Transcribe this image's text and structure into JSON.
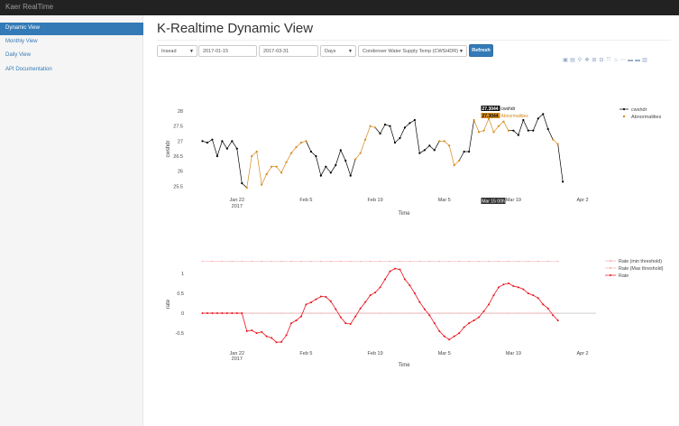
{
  "app": {
    "brand": "Kaer RealTime"
  },
  "sidebar": {
    "items": [
      {
        "label": "Dynamic View",
        "active": true
      },
      {
        "label": "Monthly View",
        "active": false
      },
      {
        "label": "Daily View",
        "active": false
      },
      {
        "label": "API Documentation",
        "active": false
      }
    ]
  },
  "main": {
    "title": "K-Realtime Dynamic View",
    "controls": {
      "site": "Insead",
      "start_date": "2017-01-15",
      "end_date": "2017-03-31",
      "interval": "Days",
      "metric": "Condenser Water Supply Temp (CWSHDR)",
      "refresh_label": "Refresh"
    },
    "modebar_icons": [
      "camera-icon",
      "save-icon",
      "zoom-icon",
      "pan-icon",
      "zoom-in-icon",
      "zoom-out-icon",
      "autoscale-icon",
      "home-icon",
      "spike-lines-icon",
      "hover-closest-icon",
      "hover-compare-icon",
      "plotly-logo-icon"
    ]
  },
  "colors": {
    "accent": "#337ab7",
    "normal": "#000000",
    "abnormal": "#d4891b",
    "rate": "#e8111b",
    "threshold": "#f7a8ad"
  },
  "chart_data": [
    {
      "type": "line",
      "title": "",
      "xlabel": "Time",
      "ylabel": "cwshdr",
      "ylim": [
        25.3,
        28.3
      ],
      "yticks": [
        25.5,
        26,
        26.5,
        27,
        27.5,
        28
      ],
      "xticks": [
        {
          "date": "2017-01-22",
          "label": "Jan 22",
          "sublabel": "2017"
        },
        {
          "date": "2017-02-05",
          "label": "Feb 5"
        },
        {
          "date": "2017-02-19",
          "label": "Feb 19"
        },
        {
          "date": "2017-03-05",
          "label": "Mar 5"
        },
        {
          "date": "2017-03-19",
          "label": "Mar 19"
        },
        {
          "date": "2017-04-02",
          "label": "Apr 2"
        }
      ],
      "x_range": [
        "2017-01-14",
        "2017-04-04"
      ],
      "legend": {
        "placement": "top-right",
        "entries": [
          "cwshdr",
          "Abnormalities"
        ]
      },
      "hover": {
        "date": "Mar 15 00h",
        "labels": [
          {
            "value": "27.3044",
            "series": "cwshdr"
          },
          {
            "value": "27.3044",
            "series": "Abnormalities"
          }
        ]
      },
      "series": [
        {
          "name": "cwshdr",
          "x": [
            "2017-01-15",
            "2017-01-16",
            "2017-01-17",
            "2017-01-18",
            "2017-01-19",
            "2017-01-20",
            "2017-01-21",
            "2017-01-22",
            "2017-01-23",
            "2017-01-24",
            "2017-01-25",
            "2017-01-26",
            "2017-01-27",
            "2017-01-28",
            "2017-01-29",
            "2017-01-30",
            "2017-01-31",
            "2017-02-01",
            "2017-02-02",
            "2017-02-03",
            "2017-02-04",
            "2017-02-05",
            "2017-02-06",
            "2017-02-07",
            "2017-02-08",
            "2017-02-09",
            "2017-02-10",
            "2017-02-11",
            "2017-02-12",
            "2017-02-13",
            "2017-02-14",
            "2017-02-15",
            "2017-02-16",
            "2017-02-17",
            "2017-02-18",
            "2017-02-19",
            "2017-02-20",
            "2017-02-21",
            "2017-02-22",
            "2017-02-23",
            "2017-02-24",
            "2017-02-25",
            "2017-02-26",
            "2017-02-27",
            "2017-02-28",
            "2017-03-01",
            "2017-03-02",
            "2017-03-03",
            "2017-03-04",
            "2017-03-05",
            "2017-03-06",
            "2017-03-07",
            "2017-03-08",
            "2017-03-09",
            "2017-03-10",
            "2017-03-11",
            "2017-03-12",
            "2017-03-13",
            "2017-03-14",
            "2017-03-15",
            "2017-03-16",
            "2017-03-17",
            "2017-03-18",
            "2017-03-19",
            "2017-03-20",
            "2017-03-21",
            "2017-03-22",
            "2017-03-23",
            "2017-03-24",
            "2017-03-25",
            "2017-03-26",
            "2017-03-27",
            "2017-03-28",
            "2017-03-29",
            "2017-03-30",
            "2017-03-31"
          ],
          "y": [
            27.0,
            26.95,
            27.05,
            26.5,
            27.0,
            26.75,
            27.0,
            26.75,
            25.6,
            25.45,
            26.5,
            26.65,
            25.55,
            25.9,
            26.15,
            26.15,
            25.95,
            26.3,
            26.6,
            26.8,
            26.95,
            27.0,
            26.65,
            26.5,
            25.85,
            26.15,
            25.95,
            26.2,
            26.7,
            26.35,
            25.85,
            26.4,
            26.6,
            27.05,
            27.5,
            27.45,
            27.25,
            27.55,
            27.5,
            26.95,
            27.1,
            27.45,
            27.6,
            27.7,
            26.6,
            26.7,
            26.85,
            26.7,
            27.0,
            27.0,
            26.85,
            26.2,
            26.35,
            26.65,
            26.65,
            27.7,
            27.3,
            27.35,
            27.75,
            27.3,
            27.5,
            27.65,
            27.35,
            27.35,
            27.2,
            27.7,
            27.35,
            27.35,
            27.75,
            27.9,
            27.4,
            27.05,
            26.9,
            25.65,
            null,
            null
          ]
        },
        {
          "name": "Abnormalities",
          "segments": [
            {
              "from": "2017-01-24",
              "to": "2017-02-05"
            },
            {
              "from": "2017-02-15",
              "to": "2017-02-19"
            },
            {
              "from": "2017-03-04",
              "to": "2017-03-08"
            },
            {
              "from": "2017-03-11",
              "to": "2017-03-18"
            },
            {
              "from": "2017-03-27",
              "to": "2017-03-28"
            }
          ]
        }
      ]
    },
    {
      "type": "line",
      "title": "",
      "xlabel": "Time",
      "ylabel": "rate",
      "ylim": [
        -0.95,
        1.45
      ],
      "yticks": [
        -0.5,
        0,
        0.5,
        1
      ],
      "xticks": [
        {
          "date": "2017-01-22",
          "label": "Jan 22",
          "sublabel": "2017"
        },
        {
          "date": "2017-02-05",
          "label": "Feb 5"
        },
        {
          "date": "2017-02-19",
          "label": "Feb 19"
        },
        {
          "date": "2017-03-05",
          "label": "Mar 5"
        },
        {
          "date": "2017-03-19",
          "label": "Mar 19"
        },
        {
          "date": "2017-04-02",
          "label": "Apr 2"
        }
      ],
      "x_range": [
        "2017-01-14",
        "2017-04-04"
      ],
      "legend": {
        "placement": "top-right",
        "entries": [
          "Rate (min threshold)",
          "Rate (Max threshold)",
          "Rate"
        ]
      },
      "series": [
        {
          "name": "Rate (min threshold)",
          "constant": 0
        },
        {
          "name": "Rate (Max threshold)",
          "constant": 1.3
        },
        {
          "name": "Rate",
          "x_start": "2017-01-15",
          "y": [
            0,
            0,
            0,
            0,
            0,
            0,
            0,
            0,
            0,
            -0.45,
            -0.43,
            -0.5,
            -0.47,
            -0.58,
            -0.62,
            -0.73,
            -0.72,
            -0.55,
            -0.25,
            -0.18,
            -0.08,
            0.22,
            0.27,
            0.35,
            0.42,
            0.41,
            0.3,
            0.1,
            -0.1,
            -0.25,
            -0.27,
            -0.08,
            0.12,
            0.28,
            0.45,
            0.52,
            0.65,
            0.85,
            1.05,
            1.12,
            1.1,
            0.85,
            0.7,
            0.5,
            0.28,
            0.1,
            -0.05,
            -0.25,
            -0.45,
            -0.58,
            -0.66,
            -0.58,
            -0.5,
            -0.35,
            -0.25,
            -0.18,
            -0.1,
            0.05,
            0.22,
            0.45,
            0.65,
            0.72,
            0.75,
            0.68,
            0.65,
            0.6,
            0.5,
            0.45,
            0.38,
            0.22,
            0.12,
            -0.05,
            -0.18
          ]
        }
      ]
    }
  ]
}
